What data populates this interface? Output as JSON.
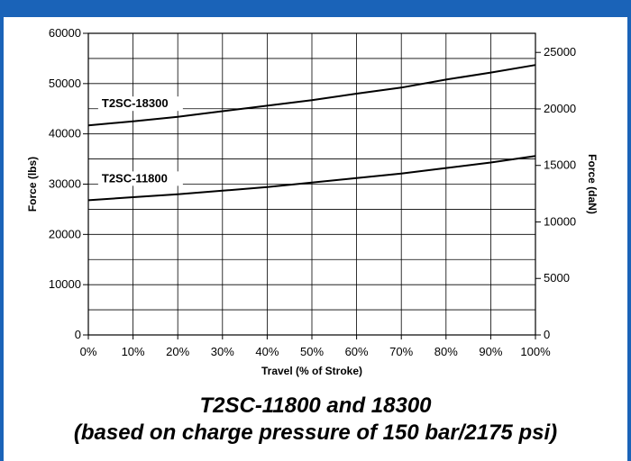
{
  "colors": {
    "frame": "#1a63b8",
    "grid": "#000000",
    "line": "#000000"
  },
  "caption": {
    "line1": "T2SC-11800 and 18300",
    "line2": "(based on charge pressure of 150 bar/2175 psi)"
  },
  "chart_data": {
    "type": "line",
    "xlabel": "Travel (% of Stroke)",
    "ylabel": "Force (lbs)",
    "y2label": "Force (daN)",
    "xlim": [
      0,
      100
    ],
    "ylim": [
      0,
      60000
    ],
    "y2lim": [
      0,
      26690
    ],
    "xticks": [
      0,
      10,
      20,
      30,
      40,
      50,
      60,
      70,
      80,
      90,
      100
    ],
    "xtick_labels": [
      "0%",
      "10%",
      "20%",
      "30%",
      "40%",
      "50%",
      "60%",
      "70%",
      "80%",
      "90%",
      "100%"
    ],
    "yticks": [
      0,
      10000,
      20000,
      30000,
      40000,
      50000,
      60000
    ],
    "ytick_labels": [
      "0",
      "10000",
      "20000",
      "30000",
      "40000",
      "50000",
      "60000"
    ],
    "y2ticks": [
      0,
      5000,
      10000,
      15000,
      20000,
      25000
    ],
    "y2tick_labels": [
      "0",
      "5000",
      "10000",
      "15000",
      "20000",
      "25000"
    ],
    "grid": true,
    "series": [
      {
        "name": "T2SC-18300",
        "x": [
          0,
          10,
          20,
          30,
          40,
          50,
          60,
          70,
          80,
          90,
          100
        ],
        "values": [
          41700,
          42500,
          43400,
          44500,
          45600,
          46700,
          48000,
          49200,
          50800,
          52200,
          53700
        ]
      },
      {
        "name": "T2SC-11800",
        "x": [
          0,
          10,
          20,
          30,
          40,
          50,
          60,
          70,
          80,
          90,
          100
        ],
        "values": [
          26800,
          27400,
          28000,
          28700,
          29400,
          30300,
          31200,
          32100,
          33200,
          34300,
          35600
        ]
      }
    ]
  }
}
